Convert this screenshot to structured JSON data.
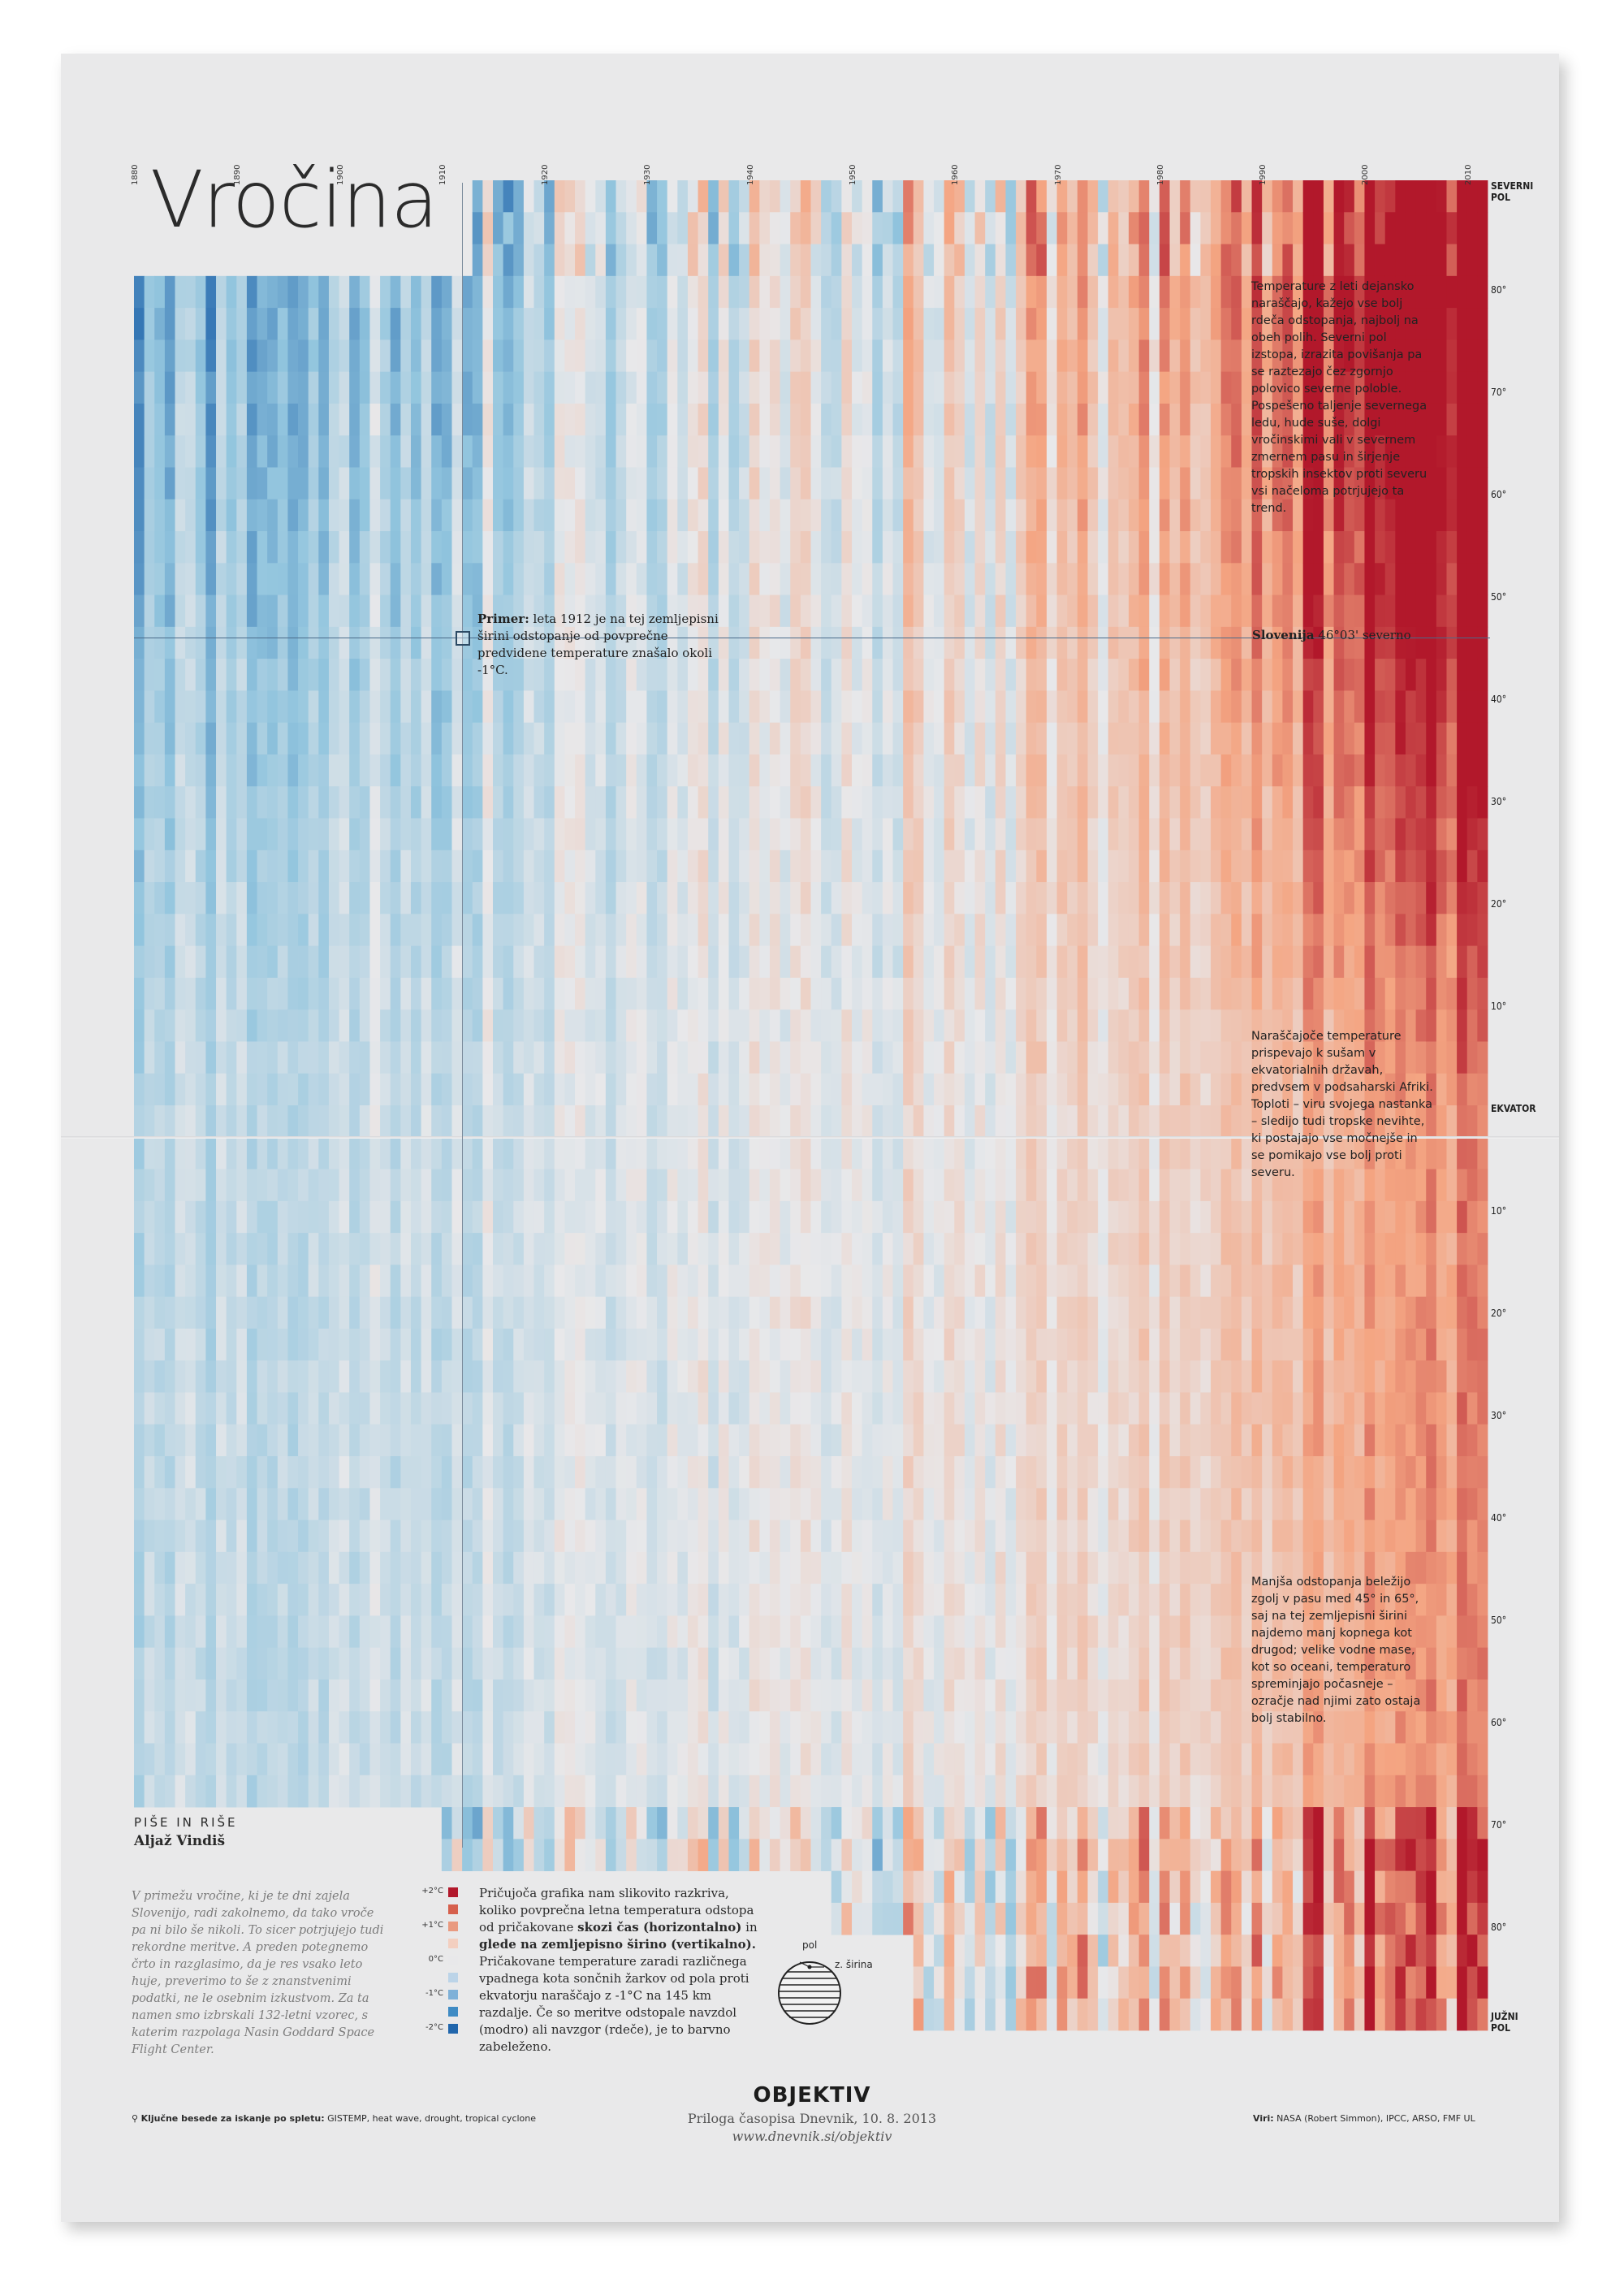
{
  "title": "Vročina",
  "years": [
    "1880",
    "1890",
    "1900",
    "1910",
    "1920",
    "1930",
    "1940",
    "1950",
    "1960",
    "1970",
    "1980",
    "1990",
    "2000",
    "2010"
  ],
  "latitudes": [
    {
      "label": "SEVERNI POL",
      "bold": true
    },
    {
      "label": "80°"
    },
    {
      "label": "70°"
    },
    {
      "label": "60°"
    },
    {
      "label": "50°"
    },
    {
      "label": "40°"
    },
    {
      "label": "30°"
    },
    {
      "label": "20°"
    },
    {
      "label": "10°"
    },
    {
      "label": "EKVATOR",
      "bold": true
    },
    {
      "label": "10°"
    },
    {
      "label": "20°"
    },
    {
      "label": "30°"
    },
    {
      "label": "40°"
    },
    {
      "label": "50°"
    },
    {
      "label": "60°"
    },
    {
      "label": "70°"
    },
    {
      "label": "80°"
    },
    {
      "label": "JUŽNI POL",
      "bold": true
    }
  ],
  "notes": {
    "top": "Temperature z leti dejansko naraščajo, kažejo vse bolj rdeča odstopanja, najbolj na obeh polih. Severni pol izstopa, izrazita povišanja pa se raztezajo čez zgornjo polovico severne poloble. Pospešeno taljenje severnega ledu, hude suše, dolgi vročinskimi vali v severnem zmernem pasu in širjenje tropskih insektov proti severu vsi načeloma potrjujejo ta trend.",
    "middle": "Naraščajoče temperature prispevajo k sušam v ekvatorialnih državah, predvsem v podsaharski Afriki. Toploti – viru svojega nastanka – sledijo tudi tropske nevihte, ki postajajo vse močnejše in se pomikajo vse bolj proti severu.",
    "lower": "Manjša odstopanja beležijo zgolj v pasu med 45° in 65°, saj na tej zemljepisni širini najdemo manj kopnega kot drugod; velike vodne mase, kot so oceani, temperaturo spreminjajo počasneje – ozračje nad njimi zato ostaja bolj stabilno."
  },
  "primer": {
    "bold": "Primer:",
    "text": " leta 1912 je na tej zemljepisni širini odstopanje od povprečne predvidene temperature znašalo okoli -1°C."
  },
  "slovenija": {
    "bold": "Slovenija",
    "text": " 46°03' severno"
  },
  "byline": {
    "role": "PIŠE IN RIŠE",
    "name": "Aljaž Vindiš"
  },
  "intro": "V primežu vročine, ki je te dni zajela Slovenijo, radi zakolnemo, da tako vroče pa ni bilo še nikoli. To sicer potrjujejo tudi rekordne meritve. A preden potegnemo črto in razglasimo, da je res vsako leto huje, preverimo to še z znanstvenimi podatki, ne le osebnim izkustvom. Za ta namen smo izbrskali 132-letni vzorec, s katerim razpolaga Nasin Goddard Space Flight Center.",
  "legend": [
    {
      "label": "+2°C",
      "color": "#b2182b"
    },
    {
      "label": "",
      "color": "#d6604d"
    },
    {
      "label": "+1°C",
      "color": "#e99a80"
    },
    {
      "label": "",
      "color": "#f3cfc0"
    },
    {
      "label": "0°C",
      "color": "#e8e8ea"
    },
    {
      "label": "",
      "color": "#bcd4e8"
    },
    {
      "label": "-1°C",
      "color": "#7fb1d8"
    },
    {
      "label": "",
      "color": "#3f8bc4"
    },
    {
      "label": "-2°C",
      "color": "#2166ac"
    }
  ],
  "explanation": {
    "p1": "Pričujoča grafika nam slikovito razkriva, koliko povprečna letna temperatura odstopa od pričakovane ",
    "b1": "skozi čas (horizontalno)",
    "p2": " in ",
    "b2": "glede na zemljepisno širino (vertikalno).",
    "p3": " Pričakovane temperature zaradi različnega vpadnega kota sončnih žarkov od pola proti ekvatorju naraščajo z -1°C na 145 km razdalje. Če so meritve odstopale navzdol (modro) ali navzgor (rdeče), je to barvno zabeleženo."
  },
  "globe": {
    "pol": "pol",
    "sirina": "z. širina"
  },
  "footer": {
    "keywords_label": "Ključne besede za iskanje po spletu:",
    "keywords": " GISTEMP, heat wave, drought, tropical cyclone",
    "logo": "OBJEKTIV",
    "sub": "Priloga časopisa Dnevnik, 10. 8. 2013",
    "url": "www.dnevnik.si/objektiv",
    "sources_label": "Viri:",
    "sources": " NASA (Robert Simmon), IPCC, ARSO, FMF UL"
  },
  "colors": {
    "cold": "#2166ac",
    "neutral": "#e8e8ea",
    "warm": "#b2182b",
    "line": "#4a6b8a"
  },
  "chart_data": {
    "type": "heatmap",
    "title": "Vročina",
    "x": {
      "start_year": 1880,
      "end_year": 2011,
      "ticks": [
        1880,
        1890,
        1900,
        1910,
        1920,
        1930,
        1940,
        1950,
        1960,
        1970,
        1980,
        1990,
        2000,
        2010
      ]
    },
    "y": {
      "from": "SEVERNI POL",
      "to": "JUŽNI POL",
      "ticks": [
        "80°",
        "70°",
        "60°",
        "50°",
        "40°",
        "30°",
        "20°",
        "10°",
        "EKVATOR",
        "10°",
        "20°",
        "30°",
        "40°",
        "50°",
        "60°",
        "70°",
        "80°"
      ]
    },
    "scale": {
      "min": -2,
      "max": 2,
      "unit": "°C",
      "legend_ticks": [
        "+2°C",
        "+1°C",
        "0°C",
        "-1°C",
        "-2°C"
      ]
    },
    "highlights": [
      {
        "year": 1912,
        "latitude": "46°03' N",
        "anomaly": -1
      }
    ],
    "missing_data": [
      "polar regions before ~1910 (north) and before ~1950 (south)"
    ]
  }
}
